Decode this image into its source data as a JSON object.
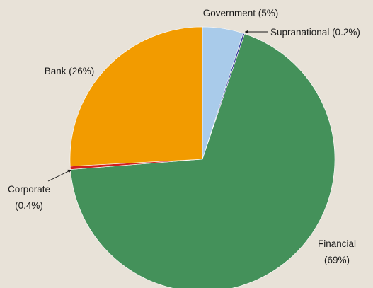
{
  "chart_data": {
    "type": "pie",
    "slices": [
      {
        "label": "Government",
        "value": 5,
        "value_label": "(5%)",
        "color": "#A9CBEA"
      },
      {
        "label": "Supranational",
        "value": 0.2,
        "value_label": "(0.2%)",
        "color": "#3B3F9E"
      },
      {
        "label": "Financial",
        "value": 69,
        "value_label": "(69%)",
        "color": "#44915A"
      },
      {
        "label": "Corporate",
        "value": 0.4,
        "value_label": "(0.4%)",
        "color": "#D21F1F"
      },
      {
        "label": "Bank",
        "value": 26,
        "value_label": "(26%)",
        "color": "#F29B00"
      }
    ],
    "start": "12 o'clock",
    "direction": "clockwise",
    "legend": "none",
    "background": "#E8E2D8"
  }
}
